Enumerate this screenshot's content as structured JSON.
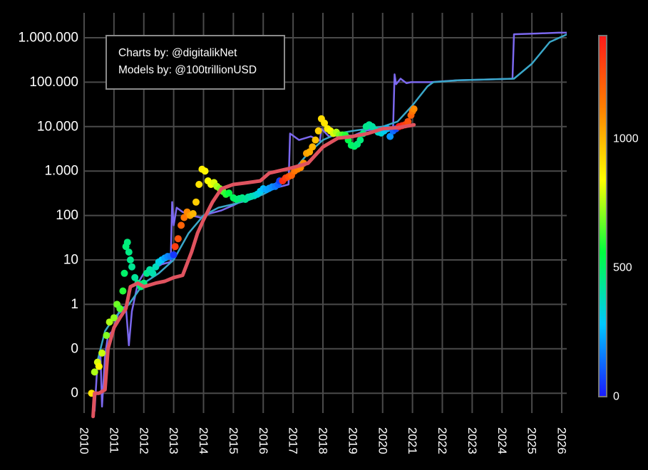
{
  "chart_data": {
    "type": "scatter",
    "title": "",
    "xlabel": "",
    "ylabel": "",
    "y_scale": "log",
    "grid": true,
    "background": "#000000",
    "grid_color": "#4a4a4a",
    "x_ticks": [
      "2010",
      "2011",
      "2012",
      "2013",
      "2014",
      "2015",
      "2016",
      "2017",
      "2018",
      "2019",
      "2020",
      "2021",
      "2022",
      "2023",
      "2024",
      "2025",
      "2026"
    ],
    "y_ticks": [
      {
        "value": 1000000,
        "label": "1.000.000"
      },
      {
        "value": 100000,
        "label": "100.000"
      },
      {
        "value": 10000,
        "label": "10.000"
      },
      {
        "value": 1000,
        "label": "1.000"
      },
      {
        "value": 100,
        "label": "100"
      },
      {
        "value": 10,
        "label": "10"
      },
      {
        "value": 1,
        "label": "1"
      },
      {
        "value": 0.1,
        "label": "0"
      },
      {
        "value": 0.01,
        "label": "0"
      }
    ],
    "annotations": [
      "Charts by: @digitalikNet",
      "Models by: @100trillionUSD"
    ],
    "colorbar": {
      "min": 0,
      "max": 1400,
      "ticks": [
        {
          "value": 0,
          "label": "0"
        },
        {
          "value": 500,
          "label": "500"
        },
        {
          "value": 1000,
          "label": "1000"
        }
      ],
      "colors": [
        "#1a1aff",
        "#00c8ff",
        "#00ff40",
        "#ffff00",
        "#ff8000",
        "#ff1a1a"
      ]
    },
    "series": [
      {
        "color": "#7b68ee",
        "style": "line",
        "points": [
          [
            2010.35,
            0.004
          ],
          [
            2010.45,
            0.05
          ],
          [
            2010.55,
            0.07
          ],
          [
            2010.6,
            0.005
          ],
          [
            2010.7,
            0.07
          ],
          [
            2010.8,
            0.2
          ],
          [
            2010.95,
            0.25
          ],
          [
            2011.2,
            0.8
          ],
          [
            2011.4,
            0.9
          ],
          [
            2011.5,
            0.12
          ],
          [
            2011.6,
            0.7
          ],
          [
            2011.8,
            3
          ],
          [
            2012.0,
            5
          ],
          [
            2012.3,
            6
          ],
          [
            2012.6,
            8
          ],
          [
            2012.9,
            9
          ],
          [
            2012.95,
            200
          ],
          [
            2013.0,
            60
          ],
          [
            2013.1,
            150
          ],
          [
            2013.3,
            120
          ],
          [
            2013.6,
            100
          ],
          [
            2013.9,
            90
          ],
          [
            2014.2,
            110
          ],
          [
            2014.6,
            130
          ],
          [
            2015.0,
            170
          ],
          [
            2015.4,
            230
          ],
          [
            2015.8,
            320
          ],
          [
            2016.2,
            380
          ],
          [
            2016.6,
            450
          ],
          [
            2016.85,
            500
          ],
          [
            2016.9,
            7000
          ],
          [
            2017.2,
            5000
          ],
          [
            2017.6,
            6000
          ],
          [
            2017.9,
            4800
          ],
          [
            2017.95,
            9000
          ],
          [
            2018.2,
            6000
          ],
          [
            2018.6,
            6500
          ],
          [
            2019.0,
            6200
          ],
          [
            2019.4,
            8000
          ],
          [
            2019.8,
            9000
          ],
          [
            2020.1,
            8500
          ],
          [
            2020.35,
            8800
          ],
          [
            2020.4,
            150000
          ],
          [
            2020.45,
            90000
          ],
          [
            2020.6,
            120000
          ],
          [
            2020.8,
            95000
          ],
          [
            2020.95,
            100000
          ],
          [
            2021.6,
            100000
          ],
          [
            2022.5,
            110000
          ],
          [
            2023.5,
            115000
          ],
          [
            2024.35,
            120000
          ],
          [
            2024.4,
            1200000
          ],
          [
            2025.2,
            1250000
          ],
          [
            2025.9,
            1300000
          ],
          [
            2026.3,
            1300000
          ]
        ]
      },
      {
        "color": "#3aa7c9",
        "style": "line",
        "points": [
          [
            2010.4,
            0.04
          ],
          [
            2010.7,
            0.25
          ],
          [
            2011.0,
            0.5
          ],
          [
            2011.5,
            1
          ],
          [
            2012.0,
            3
          ],
          [
            2012.5,
            5
          ],
          [
            2013.0,
            10
          ],
          [
            2013.5,
            40
          ],
          [
            2014.0,
            100
          ],
          [
            2014.5,
            150
          ],
          [
            2015.0,
            180
          ],
          [
            2015.5,
            220
          ],
          [
            2016.0,
            300
          ],
          [
            2016.5,
            450
          ],
          [
            2017.0,
            1000
          ],
          [
            2017.5,
            2500
          ],
          [
            2018.0,
            5000
          ],
          [
            2018.5,
            7000
          ],
          [
            2019.0,
            8000
          ],
          [
            2019.5,
            9000
          ],
          [
            2020.0,
            10000
          ],
          [
            2020.5,
            13000
          ],
          [
            2021.0,
            30000
          ],
          [
            2021.5,
            80000
          ],
          [
            2021.7,
            100000
          ],
          [
            2022.5,
            110000
          ],
          [
            2023.5,
            115000
          ],
          [
            2024.4,
            120000
          ],
          [
            2025.0,
            260000
          ],
          [
            2025.6,
            800000
          ],
          [
            2026.3,
            1300000
          ]
        ]
      },
      {
        "color": "#e0535f",
        "style": "line",
        "points": [
          [
            2010.3,
            0.003
          ],
          [
            2010.35,
            0.01
          ],
          [
            2010.4,
            0.01
          ],
          [
            2010.5,
            0.01
          ],
          [
            2010.7,
            0.012
          ],
          [
            2010.8,
            0.1
          ],
          [
            2011.0,
            0.3
          ],
          [
            2011.2,
            0.5
          ],
          [
            2011.4,
            0.8
          ],
          [
            2011.55,
            2.5
          ],
          [
            2011.8,
            3
          ],
          [
            2012.0,
            2.5
          ],
          [
            2012.4,
            3
          ],
          [
            2012.7,
            3.3
          ],
          [
            2013.0,
            4
          ],
          [
            2013.3,
            4.5
          ],
          [
            2013.6,
            15
          ],
          [
            2013.8,
            40
          ],
          [
            2014.0,
            80
          ],
          [
            2014.3,
            200
          ],
          [
            2014.6,
            400
          ],
          [
            2015.0,
            500
          ],
          [
            2015.5,
            550
          ],
          [
            2015.9,
            600
          ],
          [
            2016.2,
            900
          ],
          [
            2016.5,
            1000
          ],
          [
            2017.0,
            1200
          ],
          [
            2017.5,
            1500
          ],
          [
            2018.0,
            3500
          ],
          [
            2018.5,
            5500
          ],
          [
            2019.0,
            6000
          ],
          [
            2019.5,
            7000
          ],
          [
            2020.0,
            9000
          ],
          [
            2020.5,
            9500
          ],
          [
            2020.9,
            10500
          ],
          [
            2021.05,
            11000
          ]
        ]
      },
      {
        "color": "colorbar",
        "style": "scatter",
        "points": [
          [
            2010.25,
            0.01,
            900
          ],
          [
            2010.35,
            0.03,
            750
          ],
          [
            2010.45,
            0.05,
            800
          ],
          [
            2010.5,
            0.04,
            850
          ],
          [
            2010.6,
            0.08,
            780
          ],
          [
            2010.75,
            0.2,
            700
          ],
          [
            2010.85,
            0.4,
            750
          ],
          [
            2011.0,
            0.5,
            720
          ],
          [
            2011.1,
            1,
            680
          ],
          [
            2011.2,
            0.8,
            650
          ],
          [
            2011.3,
            2,
            600
          ],
          [
            2011.35,
            5,
            500
          ],
          [
            2011.4,
            20,
            480
          ],
          [
            2011.45,
            25,
            470
          ],
          [
            2011.5,
            15,
            460
          ],
          [
            2011.55,
            10,
            450
          ],
          [
            2011.6,
            7,
            440
          ],
          [
            2011.7,
            4,
            430
          ],
          [
            2011.8,
            3,
            450
          ],
          [
            2011.9,
            2.5,
            480
          ],
          [
            2012.0,
            3,
            470
          ],
          [
            2012.1,
            5,
            450
          ],
          [
            2012.2,
            6,
            420
          ],
          [
            2012.3,
            5,
            400
          ],
          [
            2012.4,
            7,
            380
          ],
          [
            2012.5,
            9,
            330
          ],
          [
            2012.6,
            10,
            280
          ],
          [
            2012.7,
            11,
            220
          ],
          [
            2012.8,
            12,
            180
          ],
          [
            2012.9,
            12,
            150
          ],
          [
            2013.0,
            13,
            50
          ],
          [
            2013.05,
            20,
            1300
          ],
          [
            2013.15,
            30,
            1250
          ],
          [
            2013.25,
            60,
            1200
          ],
          [
            2013.35,
            90,
            1150
          ],
          [
            2013.45,
            120,
            1100
          ],
          [
            2013.55,
            100,
            1050
          ],
          [
            2013.65,
            110,
            1000
          ],
          [
            2013.75,
            200,
            950
          ],
          [
            2013.85,
            500,
            900
          ],
          [
            2013.95,
            1100,
            880
          ],
          [
            2014.05,
            1000,
            860
          ],
          [
            2014.15,
            600,
            840
          ],
          [
            2014.25,
            500,
            830
          ],
          [
            2014.35,
            550,
            800
          ],
          [
            2014.45,
            450,
            750
          ],
          [
            2014.55,
            400,
            700
          ],
          [
            2014.65,
            350,
            650
          ],
          [
            2014.75,
            300,
            600
          ],
          [
            2014.85,
            320,
            560
          ],
          [
            2015.0,
            250,
            520
          ],
          [
            2015.1,
            230,
            500
          ],
          [
            2015.2,
            240,
            480
          ],
          [
            2015.3,
            250,
            460
          ],
          [
            2015.4,
            230,
            440
          ],
          [
            2015.5,
            260,
            420
          ],
          [
            2015.6,
            270,
            400
          ],
          [
            2015.7,
            280,
            380
          ],
          [
            2015.8,
            300,
            340
          ],
          [
            2015.9,
            350,
            300
          ],
          [
            2016.0,
            400,
            260
          ],
          [
            2016.1,
            380,
            230
          ],
          [
            2016.2,
            410,
            210
          ],
          [
            2016.3,
            440,
            190
          ],
          [
            2016.4,
            450,
            160
          ],
          [
            2016.5,
            500,
            120
          ],
          [
            2016.55,
            600,
            60
          ],
          [
            2016.65,
            600,
            1350
          ],
          [
            2016.75,
            700,
            1300
          ],
          [
            2016.85,
            750,
            1250
          ],
          [
            2016.95,
            800,
            1200
          ],
          [
            2017.05,
            1000,
            1150
          ],
          [
            2017.15,
            1100,
            1120
          ],
          [
            2017.25,
            1200,
            1100
          ],
          [
            2017.35,
            1500,
            1080
          ],
          [
            2017.45,
            2500,
            1050
          ],
          [
            2017.55,
            2700,
            1020
          ],
          [
            2017.65,
            3500,
            1000
          ],
          [
            2017.75,
            5000,
            980
          ],
          [
            2017.85,
            8000,
            950
          ],
          [
            2017.95,
            15000,
            920
          ],
          [
            2018.05,
            12000,
            900
          ],
          [
            2018.15,
            9000,
            880
          ],
          [
            2018.25,
            8000,
            850
          ],
          [
            2018.35,
            7000,
            800
          ],
          [
            2018.45,
            7500,
            750
          ],
          [
            2018.55,
            6500,
            700
          ],
          [
            2018.65,
            6500,
            650
          ],
          [
            2018.75,
            6400,
            600
          ],
          [
            2018.85,
            5000,
            550
          ],
          [
            2018.95,
            3800,
            520
          ],
          [
            2019.05,
            3600,
            500
          ],
          [
            2019.15,
            4000,
            480
          ],
          [
            2019.25,
            5000,
            470
          ],
          [
            2019.35,
            7000,
            460
          ],
          [
            2019.45,
            10000,
            450
          ],
          [
            2019.55,
            11000,
            440
          ],
          [
            2019.65,
            10000,
            420
          ],
          [
            2019.75,
            8500,
            400
          ],
          [
            2019.85,
            7500,
            370
          ],
          [
            2019.95,
            7200,
            340
          ],
          [
            2020.05,
            8000,
            300
          ],
          [
            2020.15,
            9000,
            260
          ],
          [
            2020.25,
            6000,
            200
          ],
          [
            2020.35,
            8000,
            130
          ],
          [
            2020.45,
            9000,
            80
          ],
          [
            2020.55,
            10000,
            1400
          ],
          [
            2020.65,
            10500,
            1350
          ],
          [
            2020.75,
            11000,
            1300
          ],
          [
            2020.85,
            13000,
            1250
          ],
          [
            2020.95,
            18000,
            1200
          ],
          [
            2021.0,
            22000,
            1150
          ],
          [
            2021.05,
            25000,
            1100
          ]
        ]
      }
    ]
  }
}
